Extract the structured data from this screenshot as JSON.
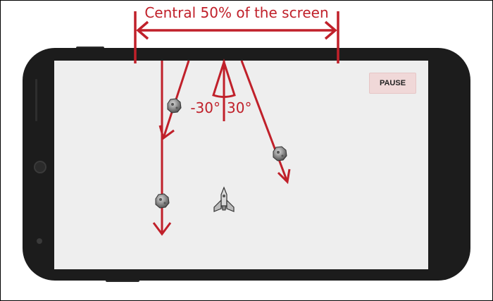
{
  "annotations": {
    "central_label": "Central 50% of the screen",
    "angle_left": "-30°",
    "angle_right": "30°"
  },
  "game": {
    "pause_label": "PAUSE"
  },
  "colors": {
    "annotation_red": "#c0202a",
    "phone_body": "#1c1c1c",
    "screen_bg": "#eeeeee",
    "pause_bg": "#f0d8d8"
  },
  "icons": [
    "asteroid-icon",
    "spaceship-icon"
  ]
}
